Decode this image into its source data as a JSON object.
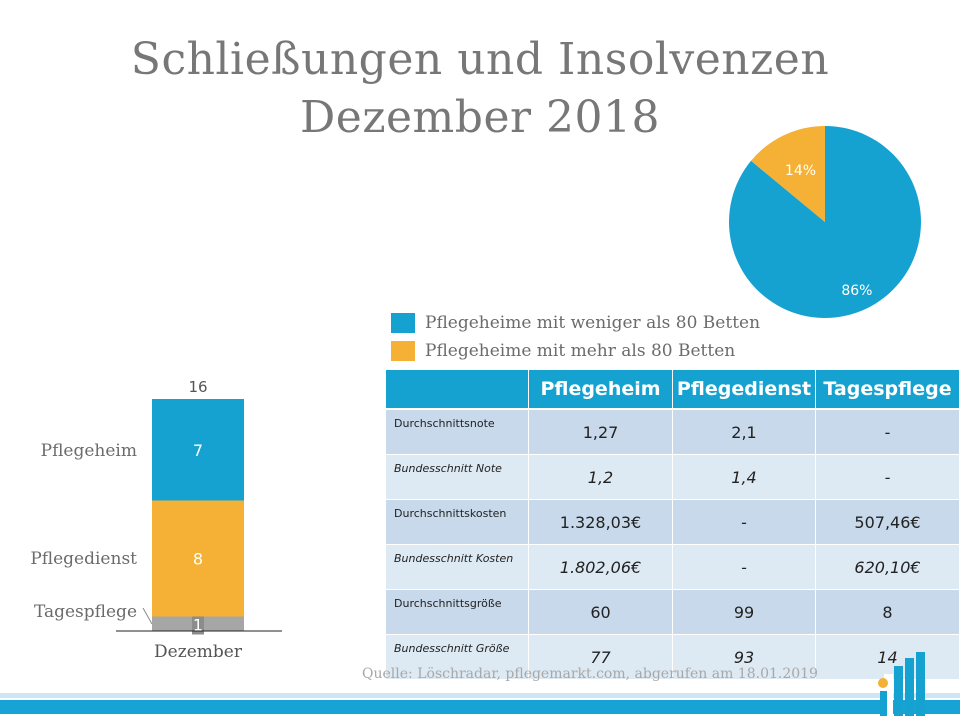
{
  "title": {
    "line1": "Schließungen und Insolvenzen",
    "line2": "Dezember 2018"
  },
  "colors": {
    "blue": "#15a2d1",
    "orange": "#f5b135",
    "gray": "#a6a6a6",
    "table_header": "#15a2d1"
  },
  "chart_data": [
    {
      "type": "pie",
      "slices": [
        {
          "label": "Pflegeheime mit weniger als 80 Betten",
          "value": 86,
          "display": "86%",
          "color": "#15a2d1"
        },
        {
          "label": "Pflegeheime mit mehr als 80 Betten",
          "value": 14,
          "display": "14%",
          "color": "#f5b135"
        }
      ]
    },
    {
      "type": "bar",
      "stacked": true,
      "categories": [
        "Dezember"
      ],
      "total_label": "16",
      "series": [
        {
          "name": "Pflegeheim",
          "values": [
            7
          ],
          "color": "#15a2d1"
        },
        {
          "name": "Pflegedienst",
          "values": [
            8
          ],
          "color": "#f5b135"
        },
        {
          "name": "Tagespflege",
          "values": [
            1
          ],
          "color": "#a6a6a6"
        }
      ]
    },
    {
      "type": "table",
      "columns": [
        "",
        "Pflegeheim",
        "Pflegedienst",
        "Tagespflege"
      ],
      "rows": [
        {
          "label": "Durchschnittsnote",
          "cells": [
            "1,27",
            "2,1",
            "-"
          ]
        },
        {
          "label": "Bundesschnitt Note",
          "cells": [
            "1,2",
            "1,4",
            "-"
          ]
        },
        {
          "label": "Durchschnittskosten",
          "cells": [
            "1.328,03€",
            "-",
            "507,46€"
          ]
        },
        {
          "label": "Bundesschnitt Kosten",
          "cells": [
            "1.802,06€",
            "-",
            "620,10€"
          ]
        },
        {
          "label": "Durchschnittsgröße",
          "cells": [
            "60",
            "99",
            "8"
          ]
        },
        {
          "label": "Bundesschnitt Größe",
          "cells": [
            "77",
            "93",
            "14"
          ]
        }
      ]
    }
  ],
  "source": "Quelle: Löschradar, pflegemarkt.com, abgerufen am 18.01.2019"
}
